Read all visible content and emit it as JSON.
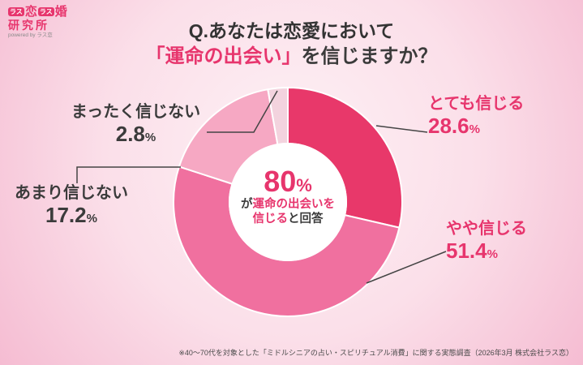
{
  "logo": {
    "tag1": "ラス",
    "char1": "恋",
    "tag2": "ラス",
    "char2": "婚",
    "line2": "研究所",
    "powered": "powered by ラス恋"
  },
  "title": {
    "line1": "Q.あなたは恋愛において",
    "line2_highlight": "「運命の出会い」",
    "line2_rest": "を信じますか？"
  },
  "center": {
    "percent": "80",
    "percent_unit": "%",
    "line2_plain": "が",
    "line2_highlight": "運命の出会いを",
    "line3_highlight": "信じる",
    "line3_plain": "と回答"
  },
  "callouts": [
    {
      "label": "とても信じる",
      "value": "28.6",
      "unit": "%"
    },
    {
      "label": "やや信じる",
      "value": "51.4",
      "unit": "%"
    },
    {
      "label": "あまり信じない",
      "value": "17.2",
      "unit": "%"
    },
    {
      "label": "まったく信じない",
      "value": "2.8",
      "unit": "%"
    }
  ],
  "footnote": "※40〜70代を対象とした「ミドルシニアの占い・スピリチュアル消費」に関する実態調査（2026年3月 株式会社ラス恋）",
  "chart_data": {
    "type": "pie",
    "title": "Q.あなたは恋愛において「運命の出会い」を信じますか？",
    "labels": [
      "とても信じる",
      "やや信じる",
      "あまり信じない",
      "まったく信じない"
    ],
    "values": [
      28.6,
      51.4,
      17.2,
      2.8
    ],
    "colors": [
      "#e8386a",
      "#f0709f",
      "#f6a8c3",
      "#f3d3de"
    ],
    "donut": true,
    "start_angle_deg": -90,
    "direction": "clockwise",
    "center_text": "80%が運命の出会いを信じると回答",
    "legend_position": "callouts",
    "accent_color": "#e7356d"
  }
}
